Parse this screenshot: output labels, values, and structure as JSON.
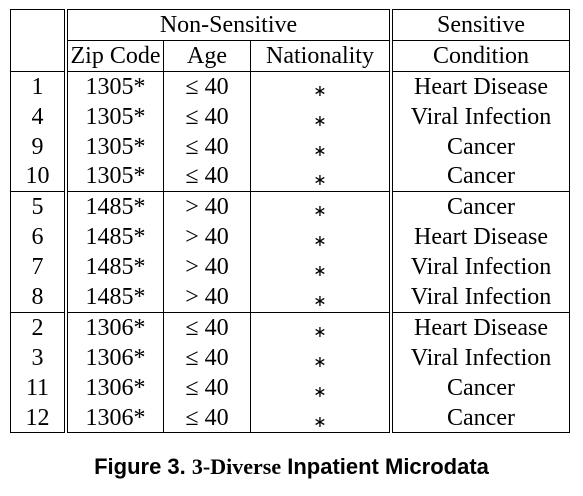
{
  "table": {
    "group_headers": {
      "non_sensitive": "Non-Sensitive",
      "sensitive": "Sensitive"
    },
    "columns": [
      "Zip Code",
      "Age",
      "Nationality",
      "Condition"
    ],
    "groups": [
      [
        {
          "id": "1",
          "zip": "1305*",
          "age": "≤ 40",
          "nationality": "∗",
          "condition": "Heart Disease"
        },
        {
          "id": "4",
          "zip": "1305*",
          "age": "≤ 40",
          "nationality": "∗",
          "condition": "Viral Infection"
        },
        {
          "id": "9",
          "zip": "1305*",
          "age": "≤ 40",
          "nationality": "∗",
          "condition": "Cancer"
        },
        {
          "id": "10",
          "zip": "1305*",
          "age": "≤ 40",
          "nationality": "∗",
          "condition": "Cancer"
        }
      ],
      [
        {
          "id": "5",
          "zip": "1485*",
          "age": "> 40",
          "nationality": "∗",
          "condition": "Cancer"
        },
        {
          "id": "6",
          "zip": "1485*",
          "age": "> 40",
          "nationality": "∗",
          "condition": "Heart Disease"
        },
        {
          "id": "7",
          "zip": "1485*",
          "age": "> 40",
          "nationality": "∗",
          "condition": "Viral Infection"
        },
        {
          "id": "8",
          "zip": "1485*",
          "age": "> 40",
          "nationality": "∗",
          "condition": "Viral Infection"
        }
      ],
      [
        {
          "id": "2",
          "zip": "1306*",
          "age": "≤ 40",
          "nationality": "∗",
          "condition": "Heart Disease"
        },
        {
          "id": "3",
          "zip": "1306*",
          "age": "≤ 40",
          "nationality": "∗",
          "condition": "Viral Infection"
        },
        {
          "id": "11",
          "zip": "1306*",
          "age": "≤ 40",
          "nationality": "∗",
          "condition": "Cancer"
        },
        {
          "id": "12",
          "zip": "1306*",
          "age": "≤ 40",
          "nationality": "∗",
          "condition": "Cancer"
        }
      ]
    ]
  },
  "caption": {
    "prefix": "Figure 3.",
    "number": "3-Diverse",
    "suffix": "Inpatient Microdata"
  }
}
